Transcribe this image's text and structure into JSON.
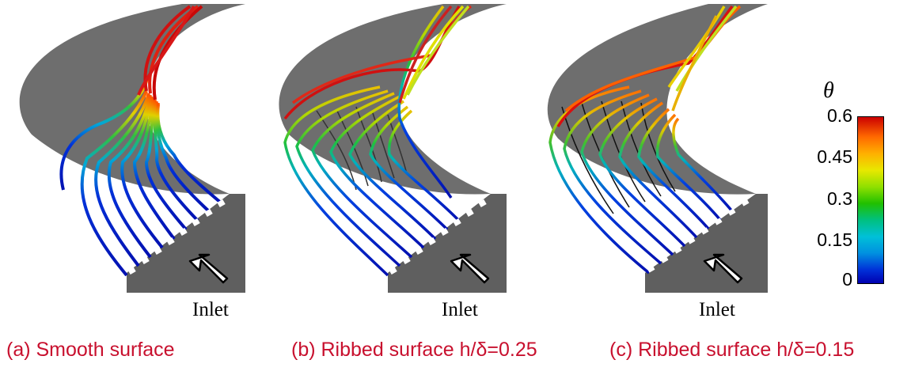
{
  "panels": [
    {
      "caption": "(a) Smooth surface",
      "inlet_label": "Inlet"
    },
    {
      "caption": "(b) Ribbed surface h/δ=0.25",
      "inlet_label": "Inlet"
    },
    {
      "caption": "(c) Ribbed surface h/δ=0.15",
      "inlet_label": "Inlet"
    }
  ],
  "colorbar": {
    "symbol": "θ",
    "ticks": [
      "0.6",
      "0.45",
      "0.3",
      "0.15",
      "0"
    ],
    "colors": [
      "#cc0000",
      "#ff6a00",
      "#e8e800",
      "#20c000",
      "#00c0d8",
      "#0030d8",
      "#0000b0"
    ]
  },
  "styles": {
    "surface_color": "#6e6e6e",
    "caption_color": "#c8102e"
  }
}
